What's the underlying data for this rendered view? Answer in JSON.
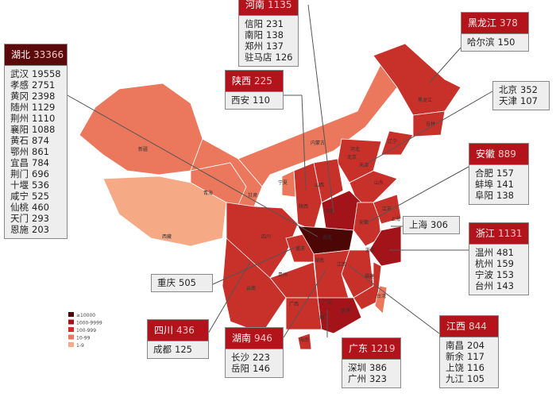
{
  "legend": [
    "≥10000",
    "1000-9999",
    "100-999",
    "10-99",
    "1-9"
  ],
  "map_labels": [
    "新疆",
    "西藏",
    "青海",
    "甘肃",
    "宁夏",
    "内蒙古",
    "黑龙江",
    "吉林",
    "辽宁",
    "河北",
    "北京",
    "天津",
    "山西",
    "山东",
    "陕西",
    "河南",
    "湖北",
    "安徽",
    "江苏",
    "上海",
    "浙江",
    "四川",
    "重庆",
    "湖南",
    "江西",
    "福建",
    "贵州",
    "云南",
    "广西",
    "广东",
    "香港",
    "澳门",
    "海南",
    "台湾"
  ],
  "callouts": [
    {
      "province": "湖北",
      "total": 33366,
      "cities": [
        {
          "name": "武汉",
          "value": 19558
        },
        {
          "name": "孝感",
          "value": 2751
        },
        {
          "name": "黄冈",
          "value": 2398
        },
        {
          "name": "随州",
          "value": 1129
        },
        {
          "name": "荆州",
          "value": 1110
        },
        {
          "name": "襄阳",
          "value": 1088
        },
        {
          "name": "黄石",
          "value": 874
        },
        {
          "name": "鄂州",
          "value": 861
        },
        {
          "name": "宜昌",
          "value": 784
        },
        {
          "name": "荆门",
          "value": 696
        },
        {
          "name": "十堰",
          "value": 536
        },
        {
          "name": "咸宁",
          "value": 525
        },
        {
          "name": "仙桃",
          "value": 460
        },
        {
          "name": "天门",
          "value": 293
        },
        {
          "name": "恩施",
          "value": 203
        }
      ]
    },
    {
      "province": "河南",
      "total": 1135,
      "cities": [
        {
          "name": "信阳",
          "value": 231
        },
        {
          "name": "南阳",
          "value": 138
        },
        {
          "name": "郑州",
          "value": 137
        },
        {
          "name": "驻马店",
          "value": 126
        }
      ]
    },
    {
      "province": "黑龙江",
      "total": 378,
      "cities": [
        {
          "name": "哈尔滨",
          "value": 150
        }
      ]
    },
    {
      "province": "陕西",
      "total": 225,
      "cities": [
        {
          "name": "西安",
          "value": 110
        }
      ]
    },
    {
      "cities": [
        {
          "name": "北京",
          "value": 352
        },
        {
          "name": "天津",
          "value": 107
        }
      ]
    },
    {
      "province": "安徽",
      "total": 889,
      "cities": [
        {
          "name": "合肥",
          "value": 157
        },
        {
          "name": "蚌埠",
          "value": 141
        },
        {
          "name": "阜阳",
          "value": 138
        }
      ]
    },
    {
      "cities": [
        {
          "name": "上海",
          "value": 306
        }
      ]
    },
    {
      "province": "浙江",
      "total": 1131,
      "cities": [
        {
          "name": "温州",
          "value": 481
        },
        {
          "name": "杭州",
          "value": 159
        },
        {
          "name": "宁波",
          "value": 153
        },
        {
          "name": "台州",
          "value": 143
        }
      ]
    },
    {
      "cities": [
        {
          "name": "重庆",
          "value": 505
        }
      ]
    },
    {
      "province": "四川",
      "total": 436,
      "cities": [
        {
          "name": "成都",
          "value": 125
        }
      ]
    },
    {
      "province": "湖南",
      "total": 946,
      "cities": [
        {
          "name": "长沙",
          "value": 223
        },
        {
          "name": "岳阳",
          "value": 146
        }
      ]
    },
    {
      "province": "广东",
      "total": 1219,
      "cities": [
        {
          "name": "深圳",
          "value": 386
        },
        {
          "name": "广州",
          "value": 323
        }
      ]
    },
    {
      "province": "江西",
      "total": 844,
      "cities": [
        {
          "name": "南昌",
          "value": 204
        },
        {
          "name": "新余",
          "value": 117
        },
        {
          "name": "上饶",
          "value": 116
        },
        {
          "name": "九江",
          "value": 105
        }
      ]
    }
  ]
}
